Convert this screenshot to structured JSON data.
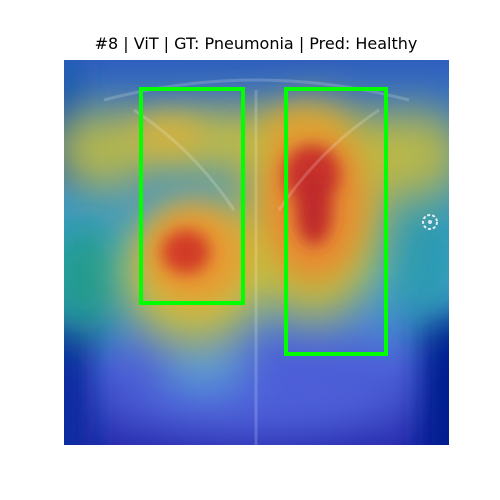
{
  "figure": {
    "title": "#8 | ViT | GT: Pneumonia | Pred: Healthy"
  },
  "image": {
    "content": "chest X-ray with attention heatmap overlay",
    "colormap": "jet",
    "box_color": "#00ff00"
  }
}
